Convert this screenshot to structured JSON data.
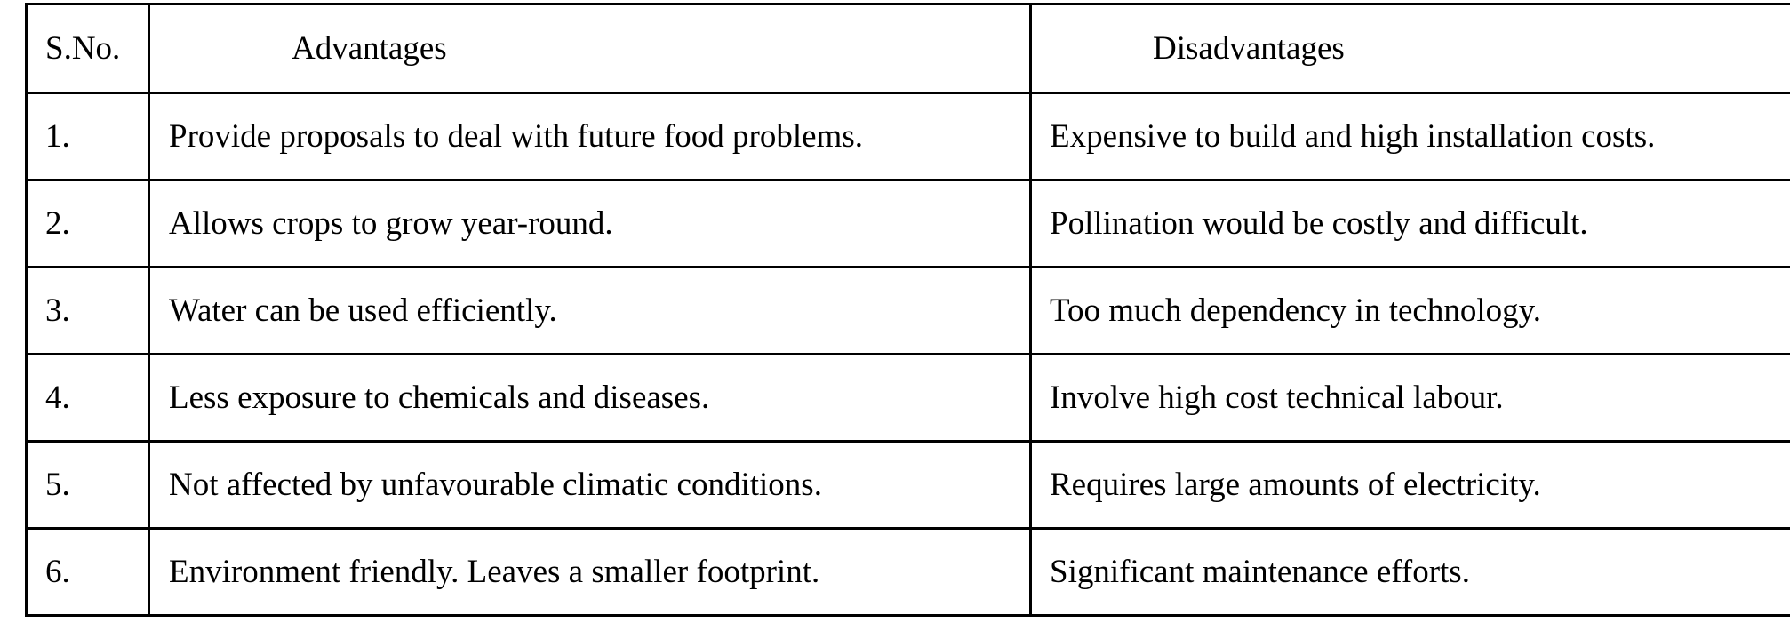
{
  "table": {
    "headers": {
      "sno": "S.No.",
      "advantages": "Advantages",
      "disadvantages": "Disadvantages"
    },
    "rows": [
      {
        "sno": "1.",
        "advantage": "Provide proposals to deal with future food problems.",
        "disadvantage": "Expensive to build and high installation costs."
      },
      {
        "sno": "2.",
        "advantage": "Allows crops to grow year-round.",
        "disadvantage": "Pollination would be costly and difficult."
      },
      {
        "sno": "3.",
        "advantage": "Water can be used efficiently.",
        "disadvantage": "Too much dependency in technology."
      },
      {
        "sno": "4.",
        "advantage": "Less exposure to chemicals and diseases.",
        "disadvantage": "Involve high cost technical labour."
      },
      {
        "sno": "5.",
        "advantage": "Not affected by unfavourable climatic conditions.",
        "disadvantage": "Requires large amounts of electricity."
      },
      {
        "sno": "6.",
        "advantage": "Environment friendly. Leaves a smaller footprint.",
        "disadvantage": "Significant maintenance efforts."
      }
    ]
  }
}
